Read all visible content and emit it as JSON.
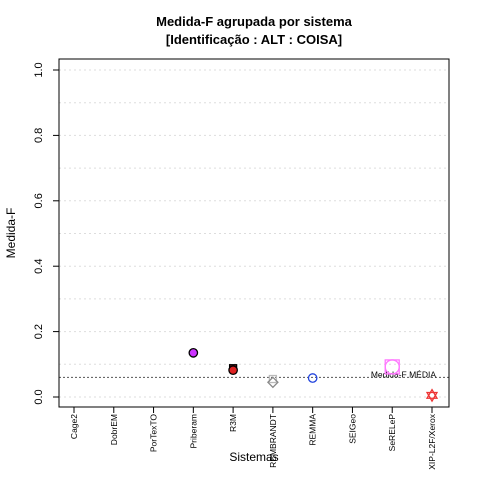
{
  "chart_data": {
    "type": "scatter",
    "title": "Medida-F agrupada por sistema",
    "subtitle": "[Identificação : ALT : COISA]",
    "xlabel": "Sistemas",
    "ylabel": "Medida-F",
    "ylim": [
      0,
      1
    ],
    "yticks": [
      "0.0",
      "0.2",
      "0.4",
      "0.6",
      "0.8",
      "1.0"
    ],
    "grid": true,
    "categories": [
      "Cage2",
      "DobrEM",
      "PorTexTO",
      "Priberam",
      "R3M",
      "REMBRANDT",
      "REMMA",
      "SEIGeo",
      "SeRELeP",
      "XIP-L2F/Xerox"
    ],
    "points": [
      {
        "category": "Priberam",
        "y": 0.135,
        "shape": "circle",
        "fill": "#cc33ff",
        "stroke": "#000000"
      },
      {
        "category": "R3M",
        "y": 0.088,
        "shape": "square",
        "fill": "#8b1a1a",
        "stroke": "#000000"
      },
      {
        "category": "R3M",
        "y": 0.082,
        "shape": "circle",
        "fill": "#dd2222",
        "stroke": "#000000"
      },
      {
        "category": "REMBRANDT",
        "y": 0.055,
        "shape": "square",
        "fill": "none",
        "stroke": "#bbbbbb"
      },
      {
        "category": "REMBRANDT",
        "y": 0.045,
        "shape": "diamond",
        "fill": "none",
        "stroke": "#888888"
      },
      {
        "category": "REMMA",
        "y": 0.058,
        "shape": "circle",
        "fill": "none",
        "stroke": "#2244dd"
      },
      {
        "category": "SeRELeP",
        "y": 0.092,
        "shape": "square",
        "fill": "none",
        "stroke": "#ff77ff"
      },
      {
        "category": "SeRELeP",
        "y": 0.092,
        "shape": "circle",
        "fill": "none",
        "stroke": "#ff77ff"
      },
      {
        "category": "XIP-L2F/Xerox",
        "y": 0.005,
        "shape": "star",
        "fill": "none",
        "stroke": "#ee3333"
      }
    ],
    "mean_line": {
      "y": 0.06,
      "label": "Medida-F MÉDIA"
    }
  }
}
